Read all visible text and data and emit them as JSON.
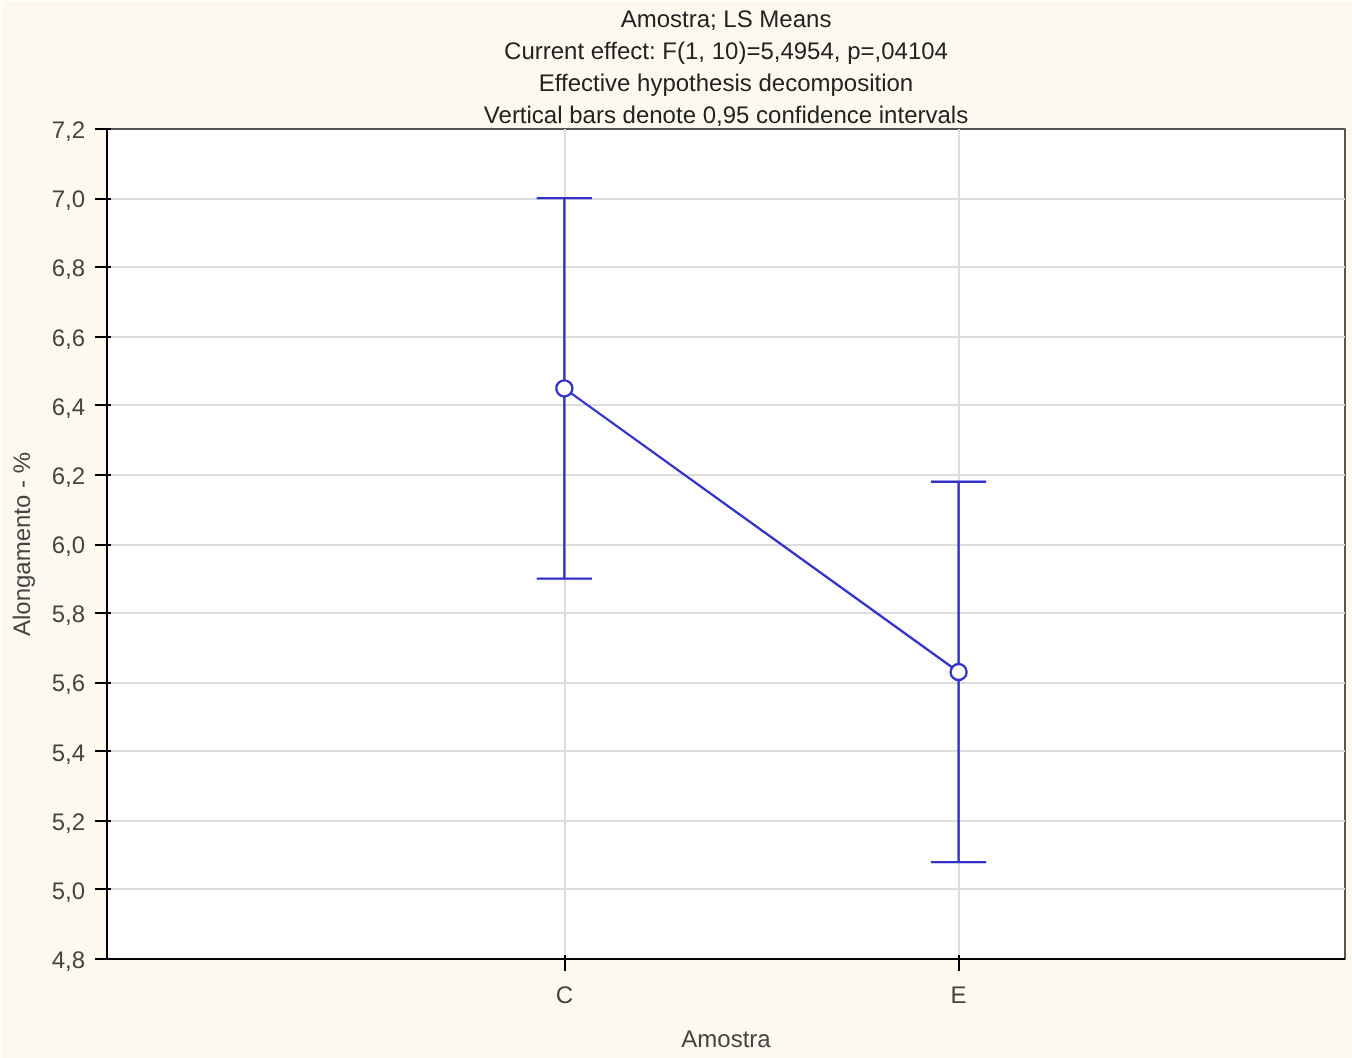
{
  "chart_data": {
    "type": "line",
    "title": "Amostra; LS Means",
    "subtitle": "Current effect: F(1, 10)=5,4954, p=,04104",
    "annotations": [
      "Effective hypothesis decomposition",
      "Vertical bars denote 0,95 confidence intervals"
    ],
    "xlabel": "Amostra",
    "ylabel": "Alongamento - %",
    "categories": [
      "C",
      "E"
    ],
    "series": [
      {
        "color": "#3333cc",
        "values": [
          6.45,
          5.63
        ],
        "errors": [
          0.55,
          0.55
        ]
      }
    ],
    "ylim": [
      4.8,
      7.2
    ],
    "yticks": [
      {
        "value": 4.8,
        "label": "4,8"
      },
      {
        "value": 5.0,
        "label": "5,0"
      },
      {
        "value": 5.2,
        "label": "5,2"
      },
      {
        "value": 5.4,
        "label": "5,4"
      },
      {
        "value": 5.6,
        "label": "5,6"
      },
      {
        "value": 5.8,
        "label": "5,8"
      },
      {
        "value": 6.0,
        "label": "6,0"
      },
      {
        "value": 6.2,
        "label": "6,2"
      },
      {
        "value": 6.4,
        "label": "6,4"
      },
      {
        "value": 6.6,
        "label": "6,6"
      },
      {
        "value": 6.8,
        "label": "6,8"
      },
      {
        "value": 7.0,
        "label": "7,0"
      },
      {
        "value": 7.2,
        "label": "7,2"
      }
    ],
    "grid": true,
    "marker": "circle",
    "line_style": "solid"
  }
}
